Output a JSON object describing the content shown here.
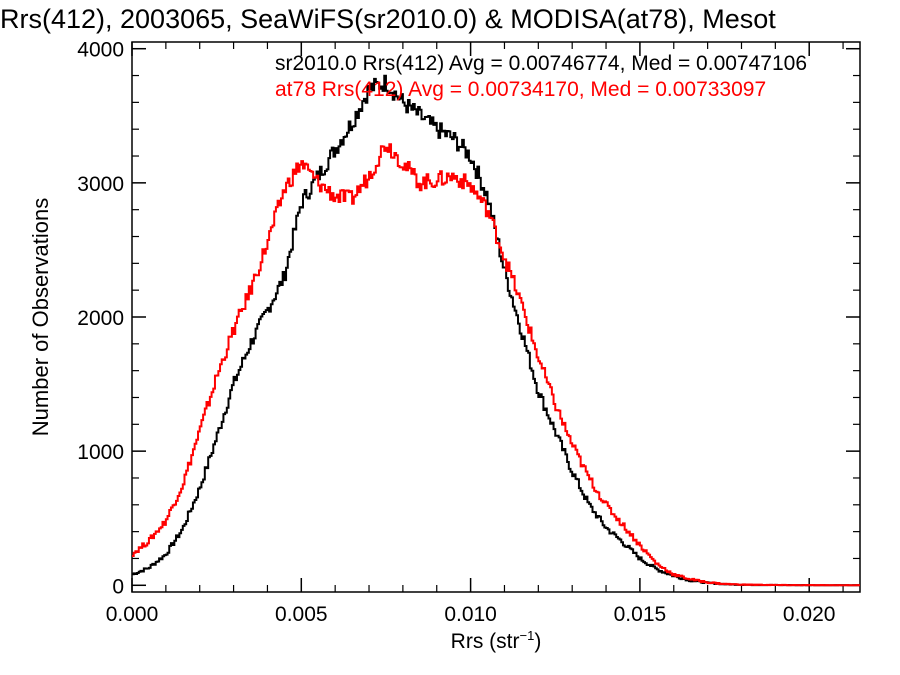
{
  "chart_data": {
    "type": "line",
    "title": "Rrs(412), 2003065, SeaWiFS(sr2010.0) & MODISA(at78), Mesot",
    "xlabel_main": "Rrs (str",
    "xlabel_sup": "−1",
    "xlabel_close": ")",
    "ylabel": "Number of Observations",
    "xlim": [
      0.0,
      0.0215
    ],
    "ylim": [
      -50,
      4050
    ],
    "xticks": [
      "0.000",
      "0.005",
      "0.010",
      "0.015",
      "0.020"
    ],
    "xtick_values": [
      0.0,
      0.005,
      0.01,
      0.015,
      0.02
    ],
    "yticks": [
      "0",
      "1000",
      "2000",
      "3000",
      "4000"
    ],
    "ytick_values": [
      0,
      1000,
      2000,
      3000,
      4000
    ],
    "grid": false,
    "legend": "top-right",
    "series": [
      {
        "label": "sr2010.0 Rrs(412) Avg = 0.00746774, Med = 0.00747106",
        "color": "#000000",
        "points": [
          [
            0.0,
            80
          ],
          [
            0.0005,
            130
          ],
          [
            0.001,
            230
          ],
          [
            0.0015,
            420
          ],
          [
            0.002,
            720
          ],
          [
            0.0025,
            1100
          ],
          [
            0.003,
            1500
          ],
          [
            0.0035,
            1800
          ],
          [
            0.004,
            2050
          ],
          [
            0.0045,
            2300
          ],
          [
            0.005,
            2850
          ],
          [
            0.0055,
            3050
          ],
          [
            0.006,
            3250
          ],
          [
            0.0065,
            3450
          ],
          [
            0.007,
            3700
          ],
          [
            0.0075,
            3750
          ],
          [
            0.008,
            3600
          ],
          [
            0.0085,
            3500
          ],
          [
            0.009,
            3400
          ],
          [
            0.0095,
            3330
          ],
          [
            0.01,
            3200
          ],
          [
            0.0105,
            2900
          ],
          [
            0.011,
            2350
          ],
          [
            0.0115,
            1900
          ],
          [
            0.012,
            1450
          ],
          [
            0.0125,
            1150
          ],
          [
            0.013,
            850
          ],
          [
            0.0135,
            600
          ],
          [
            0.014,
            430
          ],
          [
            0.0145,
            320
          ],
          [
            0.015,
            200
          ],
          [
            0.0155,
            120
          ],
          [
            0.016,
            70
          ],
          [
            0.0165,
            35
          ],
          [
            0.017,
            18
          ],
          [
            0.0175,
            8
          ],
          [
            0.018,
            4
          ],
          [
            0.019,
            2
          ],
          [
            0.02,
            1
          ],
          [
            0.0215,
            0
          ]
        ]
      },
      {
        "label": "at78 Rrs(412) Avg = 0.00734170, Med = 0.00733097",
        "color": "#ff0000",
        "points": [
          [
            0.0,
            230
          ],
          [
            0.0005,
            330
          ],
          [
            0.001,
            480
          ],
          [
            0.0015,
            750
          ],
          [
            0.002,
            1150
          ],
          [
            0.0025,
            1550
          ],
          [
            0.003,
            1900
          ],
          [
            0.0035,
            2200
          ],
          [
            0.004,
            2550
          ],
          [
            0.0045,
            2950
          ],
          [
            0.005,
            3150
          ],
          [
            0.0055,
            3000
          ],
          [
            0.006,
            2900
          ],
          [
            0.0065,
            2880
          ],
          [
            0.007,
            3050
          ],
          [
            0.0075,
            3300
          ],
          [
            0.008,
            3150
          ],
          [
            0.0085,
            3000
          ],
          [
            0.009,
            3020
          ],
          [
            0.0095,
            3050
          ],
          [
            0.01,
            2980
          ],
          [
            0.0105,
            2800
          ],
          [
            0.011,
            2450
          ],
          [
            0.0115,
            2100
          ],
          [
            0.012,
            1700
          ],
          [
            0.0125,
            1350
          ],
          [
            0.013,
            1050
          ],
          [
            0.0135,
            800
          ],
          [
            0.014,
            600
          ],
          [
            0.0145,
            450
          ],
          [
            0.015,
            300
          ],
          [
            0.0155,
            160
          ],
          [
            0.016,
            80
          ],
          [
            0.0165,
            45
          ],
          [
            0.017,
            22
          ],
          [
            0.0175,
            10
          ],
          [
            0.018,
            5
          ],
          [
            0.019,
            2
          ],
          [
            0.02,
            1
          ],
          [
            0.0215,
            0
          ]
        ]
      }
    ]
  }
}
